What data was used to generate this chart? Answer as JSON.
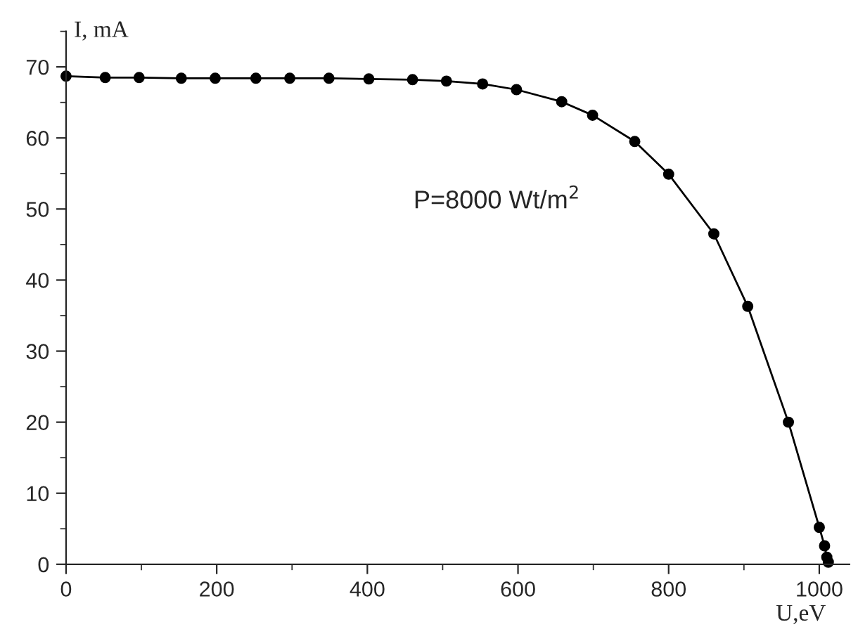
{
  "chart_data": {
    "type": "line",
    "xlabel": "U,eV",
    "ylabel": "I, mA",
    "annotations": [
      "P=8000 Wt/m$^{2}$"
    ],
    "x": [
      0,
      52,
      97,
      153,
      198,
      252,
      297,
      349,
      402,
      460,
      505,
      553,
      598,
      658,
      699,
      755,
      800,
      860,
      905,
      959,
      1000,
      1007,
      1010,
      1012
    ],
    "series": [
      {
        "color": "#000000",
        "values": [
          68.7,
          68.5,
          68.5,
          68.4,
          68.4,
          68.4,
          68.4,
          68.4,
          68.3,
          68.2,
          68.0,
          67.6,
          66.8,
          65.1,
          63.2,
          59.5,
          54.9,
          46.5,
          36.3,
          20.0,
          5.2,
          2.6,
          1.0,
          0.3
        ]
      }
    ],
    "marker": "circle",
    "line_style": "solid",
    "grid": false,
    "xlim": [
      0,
      1040
    ],
    "ylim": [
      0,
      75
    ],
    "xticks": [
      0,
      200,
      400,
      600,
      800,
      1000
    ],
    "yticks": [
      0,
      10,
      20,
      30,
      40,
      50,
      60,
      70
    ]
  }
}
